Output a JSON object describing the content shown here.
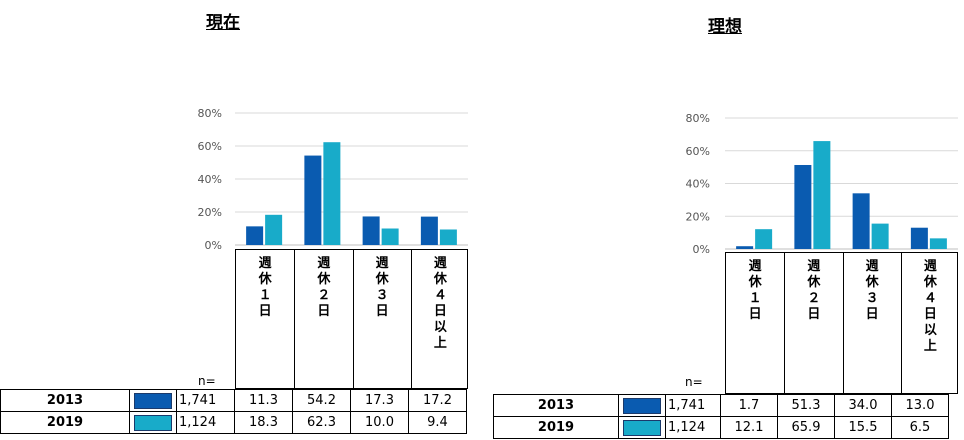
{
  "colors": {
    "s2013": "#0a5bb0",
    "s2019": "#18abc9",
    "grid": "#d9d9d9"
  },
  "chart_data": [
    {
      "type": "bar",
      "title": "現在",
      "categories": [
        "週休１日",
        "週休２日",
        "週休３日",
        "週休４日以上"
      ],
      "category_lines": [
        [
          "週",
          "休",
          "１",
          "日"
        ],
        [
          "週",
          "休",
          "２",
          "日"
        ],
        [
          "週",
          "休",
          "３",
          "日"
        ],
        [
          "週",
          "休",
          "４",
          "日",
          "以",
          "上"
        ]
      ],
      "ylim": [
        0,
        80
      ],
      "yticks": [
        "0%",
        "20%",
        "40%",
        "60%",
        "80%"
      ],
      "series": [
        {
          "name": "2013",
          "n": "1,741",
          "values": [
            11.3,
            54.2,
            17.3,
            17.2
          ],
          "labels": [
            "11.3",
            "54.2",
            "17.3",
            "17.2"
          ]
        },
        {
          "name": "2019",
          "n": "1,124",
          "values": [
            18.3,
            62.3,
            10.0,
            9.4
          ],
          "labels": [
            "18.3",
            "62.3",
            "10.0",
            "9.4"
          ]
        }
      ],
      "n_label": "n="
    },
    {
      "type": "bar",
      "title": "理想",
      "categories": [
        "週休１日",
        "週休２日",
        "週休３日",
        "週休４日以上"
      ],
      "category_lines": [
        [
          "週",
          "休",
          "１",
          "日"
        ],
        [
          "週",
          "休",
          "２",
          "日"
        ],
        [
          "週",
          "休",
          "３",
          "日"
        ],
        [
          "週",
          "休",
          "４",
          "日",
          "以",
          "上"
        ]
      ],
      "ylim": [
        0,
        80
      ],
      "yticks": [
        "0%",
        "20%",
        "40%",
        "60%",
        "80%"
      ],
      "series": [
        {
          "name": "2013",
          "n": "1,741",
          "values": [
            1.7,
            51.3,
            34.0,
            13.0
          ],
          "labels": [
            "1.7",
            "51.3",
            "34.0",
            "13.0"
          ]
        },
        {
          "name": "2019",
          "n": "1,124",
          "values": [
            12.1,
            65.9,
            15.5,
            6.5
          ],
          "labels": [
            "12.1",
            "65.9",
            "15.5",
            "6.5"
          ]
        }
      ],
      "n_label": "n="
    }
  ]
}
